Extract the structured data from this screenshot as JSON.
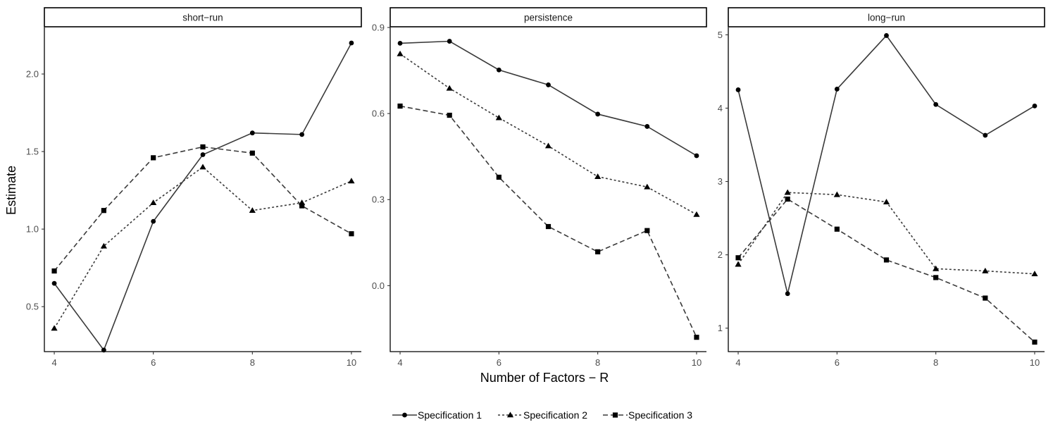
{
  "chart_data": {
    "type": "line",
    "x": [
      4,
      5,
      6,
      7,
      8,
      9,
      10
    ],
    "xlabel": "Number of Factors − R",
    "ylabel": "Estimate",
    "legend_position": "bottom",
    "grid": false,
    "series_styles": [
      {
        "name": "Specification 1",
        "marker": "circle",
        "dash": "solid",
        "color": "#3a3a3a"
      },
      {
        "name": "Specification 2",
        "marker": "triangle",
        "dash": "dotted",
        "color": "#3a3a3a"
      },
      {
        "name": "Specification 3",
        "marker": "square",
        "dash": "dashed",
        "color": "#3a3a3a"
      }
    ],
    "panels": [
      {
        "title": "short−run",
        "ylim": [
          0.21,
          2.3
        ],
        "xlim": [
          3.8,
          10.2
        ],
        "yticks": [
          0.5,
          1.0,
          1.5,
          2.0
        ],
        "ytick_labels": [
          "0.5",
          "1.0",
          "1.5",
          "2.0"
        ],
        "xticks": [
          4,
          6,
          8,
          10
        ],
        "xtick_labels": [
          "4",
          "6",
          "8",
          "10"
        ],
        "series": [
          {
            "name": "Specification 1",
            "values": [
              0.65,
              0.22,
              1.05,
              1.48,
              1.62,
              1.61,
              2.2
            ]
          },
          {
            "name": "Specification 2",
            "values": [
              0.36,
              0.89,
              1.17,
              1.4,
              1.12,
              1.17,
              1.31
            ]
          },
          {
            "name": "Specification 3",
            "values": [
              0.73,
              1.12,
              1.46,
              1.53,
              1.49,
              1.15,
              0.97
            ]
          }
        ]
      },
      {
        "title": "persistence",
        "ylim": [
          -0.23,
          0.9
        ],
        "xlim": [
          3.8,
          10.2
        ],
        "yticks": [
          0.0,
          0.3,
          0.6,
          0.9
        ],
        "ytick_labels": [
          "0.0",
          "0.3",
          "0.6",
          "0.9"
        ],
        "xticks": [
          4,
          6,
          8,
          10
        ],
        "xtick_labels": [
          "4",
          "6",
          "8",
          "10"
        ],
        "series": [
          {
            "name": "Specification 1",
            "values": [
              0.845,
              0.852,
              0.752,
              0.7,
              0.598,
              0.555,
              0.453
            ]
          },
          {
            "name": "Specification 2",
            "values": [
              0.808,
              0.688,
              0.585,
              0.487,
              0.38,
              0.344,
              0.248
            ]
          },
          {
            "name": "Specification 3",
            "values": [
              0.626,
              0.594,
              0.378,
              0.206,
              0.118,
              0.192,
              -0.18
            ]
          }
        ]
      },
      {
        "title": "long−run",
        "ylim": [
          0.68,
          5.1
        ],
        "xlim": [
          3.8,
          10.2
        ],
        "yticks": [
          1,
          2,
          3,
          4,
          5
        ],
        "ytick_labels": [
          "1",
          "2",
          "3",
          "4",
          "5"
        ],
        "xticks": [
          4,
          6,
          8,
          10
        ],
        "xtick_labels": [
          "4",
          "6",
          "8",
          "10"
        ],
        "series": [
          {
            "name": "Specification 1",
            "values": [
              4.25,
              1.47,
              4.26,
              4.99,
              4.05,
              3.63,
              4.03
            ]
          },
          {
            "name": "Specification 2",
            "values": [
              1.87,
              2.85,
              2.82,
              2.72,
              1.81,
              1.78,
              1.74
            ]
          },
          {
            "name": "Specification 3",
            "values": [
              1.96,
              2.76,
              2.35,
              1.93,
              1.69,
              1.41,
              0.81
            ]
          }
        ]
      }
    ]
  }
}
